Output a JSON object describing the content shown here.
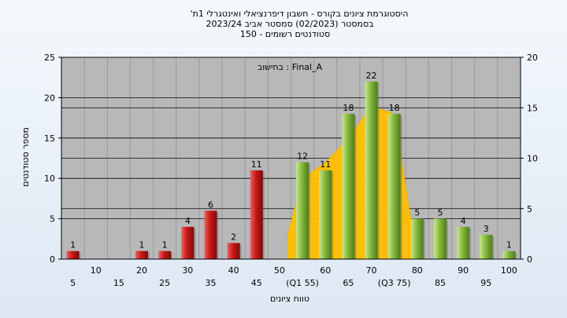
{
  "title": {
    "line1": "'היסטוגרמת ציונים בקורס - חשבון דיפרנציאלי ואינטגרלי 1ת",
    "line2": "בסמסטר  (02/2023)  סמסטר אביב 2023/24",
    "line3": "סטודנטים רשומים - 150"
  },
  "chart_data": {
    "type": "bar",
    "annotation": "בחישוב : Final_A",
    "xlabel": "טווח ציונים",
    "ylabel": "מספר סטודנטים",
    "ylim": [
      0,
      25
    ],
    "yticks": [
      0,
      5,
      10,
      15,
      20,
      25
    ],
    "ylim_right": [
      0,
      20
    ],
    "yticks_right": [
      0,
      5,
      10,
      15,
      20
    ],
    "grid": true,
    "categories": [
      "5",
      "10",
      "15",
      "20",
      "25",
      "30",
      "35",
      "40",
      "45",
      "50",
      "(Q1 55)",
      "60",
      "65",
      "70",
      "(Q3 75)",
      "80",
      "85",
      "90",
      "95",
      "100"
    ],
    "values": [
      1,
      0,
      0,
      1,
      1,
      4,
      6,
      2,
      11,
      0,
      12,
      11,
      18,
      22,
      18,
      5,
      5,
      4,
      3,
      1
    ],
    "bar_colors": {
      "below_50": "#d42020",
      "from_55": "#8dc63f"
    },
    "distribution_curve": {
      "color": "#ffc000",
      "x": [
        "50",
        "(Q1 55)",
        "60",
        "65",
        "70",
        "(Q3 75)",
        "80"
      ],
      "y": [
        3,
        10,
        12,
        15,
        19,
        18,
        0
      ]
    }
  }
}
